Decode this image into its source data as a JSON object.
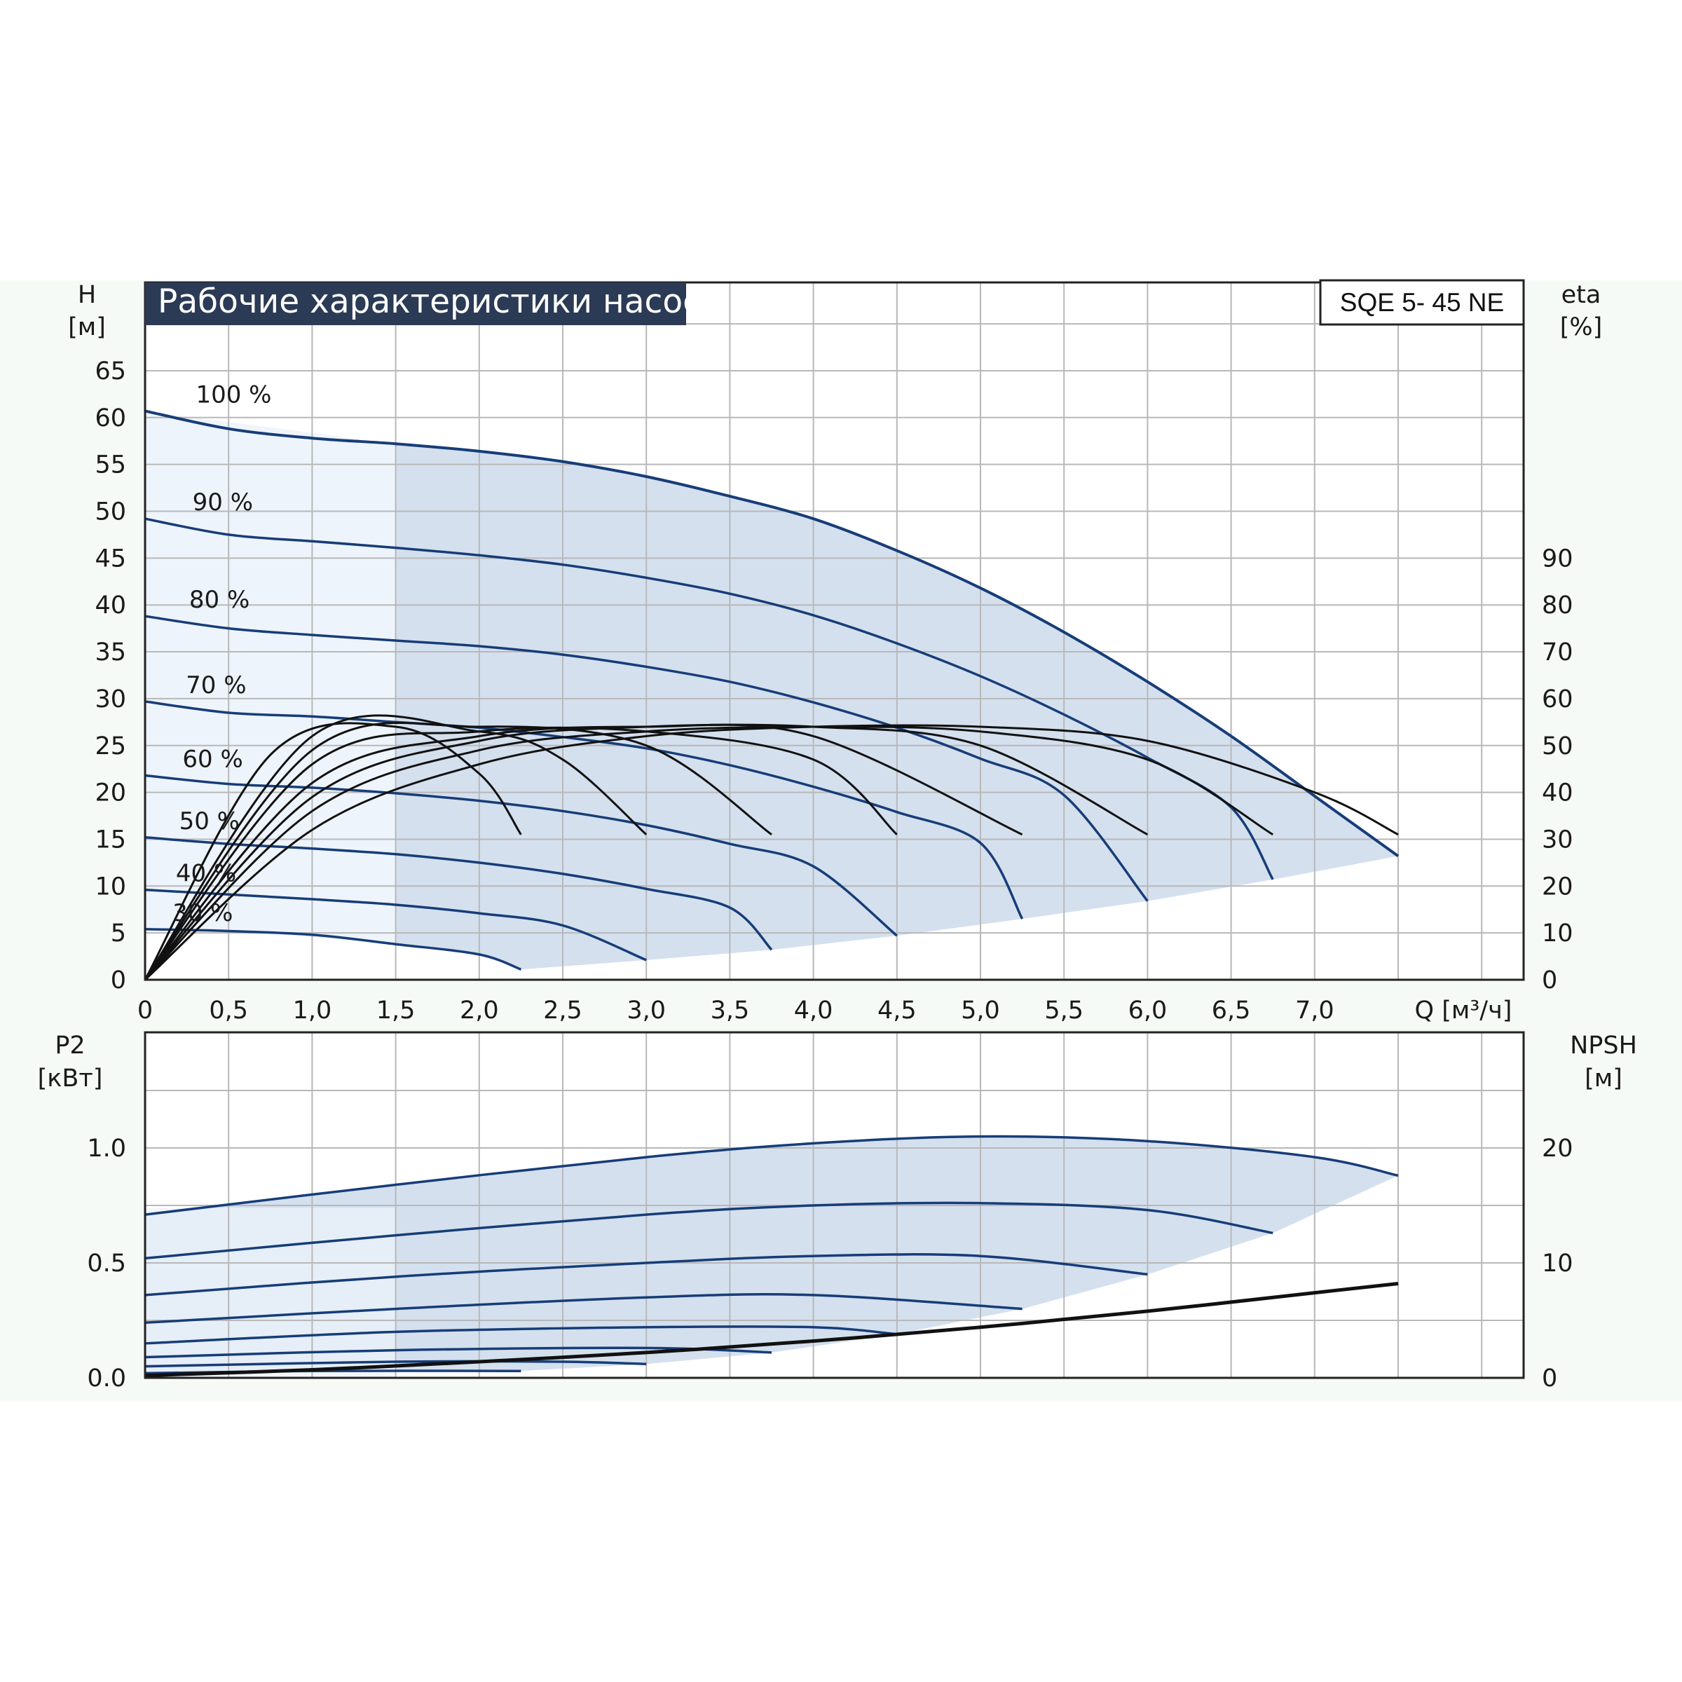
{
  "title": "Рабочие характеристики насоса",
  "model": "SQE 5- 45 NE",
  "colors": {
    "title_bg": "#2b3a55",
    "grid": "#b8b8b8",
    "frame": "#222222",
    "curve_blue": "#173d78",
    "curve_black": "#111111",
    "fill_dark": "#d4e0ee",
    "fill_light": "#eef4fb"
  },
  "chart_data": [
    {
      "type": "line",
      "panel": "head-efficiency",
      "x_axis": {
        "label": "Q [м³/ч]",
        "range": [
          0,
          8.25
        ],
        "ticks": [
          "0",
          "0,5",
          "1,0",
          "1,5",
          "2,0",
          "2,5",
          "3,0",
          "3,5",
          "4,0",
          "4,5",
          "5,0",
          "5,5",
          "6,0",
          "6,5",
          "7,0"
        ]
      },
      "y_axis_left": {
        "label_line1": "H",
        "label_line2": "[м]",
        "range": [
          0,
          70
        ],
        "ticks": [
          "0",
          "5",
          "10",
          "15",
          "20",
          "25",
          "30",
          "35",
          "40",
          "45",
          "50",
          "55",
          "60",
          "65"
        ]
      },
      "y_axis_right": {
        "label_line1": "eta",
        "label_line2": "[%]",
        "range": [
          0,
          140
        ],
        "ticks": [
          "0",
          "10",
          "20",
          "30",
          "40",
          "50",
          "60",
          "70",
          "80",
          "90"
        ]
      },
      "grid": true,
      "speed_labels": [
        "100 %",
        "90 %",
        "80 %",
        "70 %",
        "60 %",
        "50 %",
        "40 %",
        "30 %"
      ],
      "head_curves": [
        {
          "speed": 1.0,
          "points": [
            [
              0,
              60.7
            ],
            [
              0.5,
              58.8
            ],
            [
              1.0,
              57.8
            ],
            [
              1.5,
              57.2
            ],
            [
              2.0,
              56.4
            ],
            [
              2.5,
              55.3
            ],
            [
              3.0,
              53.7
            ],
            [
              3.5,
              51.6
            ],
            [
              4.0,
              49.2
            ],
            [
              4.5,
              45.8
            ],
            [
              5.0,
              41.8
            ],
            [
              5.5,
              37.1
            ],
            [
              6.0,
              31.8
            ],
            [
              6.5,
              26.0
            ],
            [
              7.0,
              19.6
            ],
            [
              7.5,
              13.2
            ]
          ]
        },
        {
          "speed": 0.9,
          "points": [
            [
              0,
              49.2
            ],
            [
              0.5,
              47.5
            ],
            [
              1.0,
              46.8
            ],
            [
              1.5,
              46.1
            ],
            [
              2.0,
              45.3
            ],
            [
              2.5,
              44.3
            ],
            [
              3.0,
              42.9
            ],
            [
              3.5,
              41.2
            ],
            [
              4.0,
              38.9
            ],
            [
              4.5,
              35.9
            ],
            [
              5.0,
              32.4
            ],
            [
              5.5,
              28.3
            ],
            [
              6.0,
              23.7
            ],
            [
              6.5,
              18.4
            ],
            [
              6.75,
              10.7
            ]
          ]
        },
        {
          "speed": 0.8,
          "points": [
            [
              0,
              38.8
            ],
            [
              0.5,
              37.5
            ],
            [
              1.0,
              36.8
            ],
            [
              1.5,
              36.2
            ],
            [
              2.0,
              35.6
            ],
            [
              2.5,
              34.7
            ],
            [
              3.0,
              33.4
            ],
            [
              3.5,
              31.8
            ],
            [
              4.0,
              29.6
            ],
            [
              4.5,
              26.9
            ],
            [
              5.0,
              23.6
            ],
            [
              5.5,
              19.7
            ],
            [
              6.0,
              8.4
            ]
          ]
        },
        {
          "speed": 0.7,
          "points": [
            [
              0,
              29.7
            ],
            [
              0.5,
              28.5
            ],
            [
              1.0,
              28.1
            ],
            [
              1.5,
              27.5
            ],
            [
              2.0,
              26.9
            ],
            [
              2.5,
              25.9
            ],
            [
              3.0,
              24.7
            ],
            [
              3.5,
              22.9
            ],
            [
              4.0,
              20.6
            ],
            [
              4.5,
              17.9
            ],
            [
              5.0,
              14.6
            ],
            [
              5.25,
              6.5
            ]
          ]
        },
        {
          "speed": 0.6,
          "points": [
            [
              0,
              21.8
            ],
            [
              0.5,
              20.9
            ],
            [
              1.0,
              20.5
            ],
            [
              1.5,
              19.9
            ],
            [
              2.0,
              19.1
            ],
            [
              2.5,
              18.0
            ],
            [
              3.0,
              16.5
            ],
            [
              3.5,
              14.5
            ],
            [
              4.0,
              12.1
            ],
            [
              4.5,
              4.7
            ]
          ]
        },
        {
          "speed": 0.5,
          "points": [
            [
              0,
              15.2
            ],
            [
              0.5,
              14.5
            ],
            [
              1.0,
              14.0
            ],
            [
              1.5,
              13.4
            ],
            [
              2.0,
              12.5
            ],
            [
              2.5,
              11.3
            ],
            [
              3.0,
              9.7
            ],
            [
              3.5,
              7.7
            ],
            [
              3.75,
              3.2
            ]
          ]
        },
        {
          "speed": 0.4,
          "points": [
            [
              0,
              9.6
            ],
            [
              0.5,
              9.1
            ],
            [
              1.0,
              8.6
            ],
            [
              1.5,
              8.0
            ],
            [
              2.0,
              7.1
            ],
            [
              2.5,
              5.8
            ],
            [
              3.0,
              2.1
            ]
          ]
        },
        {
          "speed": 0.3,
          "points": [
            [
              0,
              5.4
            ],
            [
              0.5,
              5.2
            ],
            [
              1.0,
              4.8
            ],
            [
              1.5,
              3.8
            ],
            [
              2.0,
              2.7
            ],
            [
              2.25,
              1.1
            ]
          ]
        }
      ],
      "efficiency_curves": [
        {
          "speed": 1.0,
          "points": [
            [
              0,
              0
            ],
            [
              1.0,
              32
            ],
            [
              2.0,
              46
            ],
            [
              3.0,
              52
            ],
            [
              4.0,
              54
            ],
            [
              5.0,
              54
            ],
            [
              6.0,
              51
            ],
            [
              7.0,
              40
            ],
            [
              7.5,
              31
            ]
          ]
        },
        {
          "speed": 0.9,
          "points": [
            [
              0,
              0
            ],
            [
              1.0,
              36
            ],
            [
              2.0,
              49
            ],
            [
              3.0,
              53
            ],
            [
              4.0,
              54
            ],
            [
              5.0,
              53
            ],
            [
              6.0,
              47
            ],
            [
              6.75,
              31
            ]
          ]
        },
        {
          "speed": 0.8,
          "points": [
            [
              0,
              0
            ],
            [
              1.0,
              39
            ],
            [
              2.0,
              51
            ],
            [
              3.0,
              54
            ],
            [
              4.0,
              54
            ],
            [
              5.0,
              50
            ],
            [
              6.0,
              31
            ]
          ]
        },
        {
          "speed": 0.7,
          "points": [
            [
              0,
              0
            ],
            [
              1.0,
              42
            ],
            [
              2.0,
              52
            ],
            [
              3.0,
              54
            ],
            [
              4.0,
              52
            ],
            [
              5.25,
              31
            ]
          ]
        },
        {
          "speed": 0.6,
          "points": [
            [
              0,
              0
            ],
            [
              1.0,
              46
            ],
            [
              2.0,
              53
            ],
            [
              3.0,
              53
            ],
            [
              4.0,
              47
            ],
            [
              4.5,
              31
            ]
          ]
        },
        {
          "speed": 0.5,
          "points": [
            [
              0,
              0
            ],
            [
              1.0,
              49
            ],
            [
              2.0,
              54
            ],
            [
              3.0,
              50
            ],
            [
              3.75,
              31
            ]
          ]
        },
        {
          "speed": 0.4,
          "points": [
            [
              0,
              0
            ],
            [
              1.0,
              52
            ],
            [
              2.0,
              53
            ],
            [
              2.5,
              47
            ],
            [
              3.0,
              31
            ]
          ]
        },
        {
          "speed": 0.3,
          "points": [
            [
              0,
              0
            ],
            [
              0.75,
              48
            ],
            [
              1.5,
              54
            ],
            [
              2.0,
              44
            ],
            [
              2.25,
              31
            ]
          ]
        }
      ]
    },
    {
      "type": "line",
      "panel": "power-npsh",
      "x_axis": {
        "range": [
          0,
          8.25
        ]
      },
      "y_axis_left": {
        "label_line1": "P2",
        "label_line2": "[кВт]",
        "range": [
          0,
          1.5
        ],
        "ticks": [
          "0.0",
          "0.5",
          "1.0"
        ]
      },
      "y_axis_right": {
        "label_line1": "NPSH",
        "label_line2": "[м]",
        "range": [
          0,
          30
        ],
        "ticks": [
          "0",
          "10",
          "20"
        ]
      },
      "grid": true,
      "power_curves": [
        {
          "speed": 1.0,
          "points": [
            [
              0,
              0.71
            ],
            [
              1.5,
              0.84
            ],
            [
              3.0,
              0.96
            ],
            [
              4.0,
              1.02
            ],
            [
              5.0,
              1.05
            ],
            [
              6.0,
              1.03
            ],
            [
              7.0,
              0.96
            ],
            [
              7.5,
              0.88
            ]
          ]
        },
        {
          "speed": 0.9,
          "points": [
            [
              0,
              0.52
            ],
            [
              1.5,
              0.62
            ],
            [
              3.0,
              0.71
            ],
            [
              4.0,
              0.75
            ],
            [
              5.0,
              0.76
            ],
            [
              6.0,
              0.73
            ],
            [
              6.75,
              0.63
            ]
          ]
        },
        {
          "speed": 0.8,
          "points": [
            [
              0,
              0.36
            ],
            [
              1.5,
              0.44
            ],
            [
              3.0,
              0.5
            ],
            [
              4.0,
              0.53
            ],
            [
              5.0,
              0.53
            ],
            [
              6.0,
              0.45
            ]
          ]
        },
        {
          "speed": 0.7,
          "points": [
            [
              0,
              0.24
            ],
            [
              1.5,
              0.3
            ],
            [
              3.0,
              0.35
            ],
            [
              4.0,
              0.36
            ],
            [
              5.25,
              0.3
            ]
          ]
        },
        {
          "speed": 0.6,
          "points": [
            [
              0,
              0.15
            ],
            [
              1.5,
              0.2
            ],
            [
              3.0,
              0.22
            ],
            [
              4.0,
              0.22
            ],
            [
              4.5,
              0.19
            ]
          ]
        },
        {
          "speed": 0.5,
          "points": [
            [
              0,
              0.09
            ],
            [
              1.5,
              0.12
            ],
            [
              3.0,
              0.13
            ],
            [
              3.75,
              0.11
            ]
          ]
        },
        {
          "speed": 0.4,
          "points": [
            [
              0,
              0.05
            ],
            [
              1.5,
              0.07
            ],
            [
              2.5,
              0.07
            ],
            [
              3.0,
              0.06
            ]
          ]
        },
        {
          "speed": 0.3,
          "points": [
            [
              0,
              0.02
            ],
            [
              1.0,
              0.03
            ],
            [
              2.25,
              0.03
            ]
          ]
        }
      ],
      "npsh_curve": {
        "points": [
          [
            0,
            0.2
          ],
          [
            1.0,
            0.7
          ],
          [
            2.0,
            1.4
          ],
          [
            3.0,
            2.2
          ],
          [
            4.0,
            3.2
          ],
          [
            5.0,
            4.4
          ],
          [
            6.0,
            5.8
          ],
          [
            7.0,
            7.4
          ],
          [
            7.5,
            8.2
          ]
        ]
      }
    }
  ]
}
